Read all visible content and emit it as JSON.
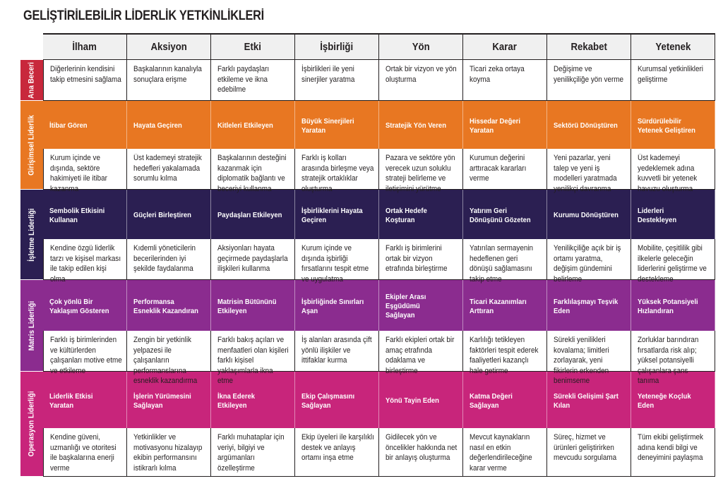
{
  "title": "GELİŞTİRİLEBİLİR LİDERLİK YETKİNLİKLERİ",
  "columns": [
    "İlham",
    "Aksiyon",
    "Etki",
    "İşbirliği",
    "Yön",
    "Karar",
    "Rekabet",
    "Yetenek"
  ],
  "colors": {
    "ana": "#c8283c",
    "girisimsel": "#e87722",
    "isletme": "#2b1f52",
    "matris": "#8b2c8f",
    "operasyon": "#c8257b"
  },
  "rows": [
    {
      "label": "Ana Beceri",
      "color_key": "ana",
      "heads": null,
      "texts": [
        "Diğerlerinin kendisini takip etmesini sağlama",
        "Başkalarının kanalıyla sonuçlara erişme",
        "Farklı paydaşları etkileme ve ikna edebilme",
        "İşbirlikleri ile yeni sinerjiler yaratma",
        "Ortak bir vizyon ve yön oluşturma",
        "Ticari zeka ortaya koyma",
        "Değişime ve yenilikçiliğe yön verme",
        "Kurumsal yetkinlikleri geliştirme"
      ]
    },
    {
      "label": "Girişimsel Liderlik",
      "color_key": "girisimsel",
      "heads": [
        "İtibar Gören",
        "Hayata Geçiren",
        "Kitleleri Etkileyen",
        "Büyük Sinerjileri Yaratan",
        "Stratejik Yön Veren",
        "Hissedar Değeri Yaratan",
        "Sektörü Dönüştüren",
        "Sürdürülebilir Yetenek Geliştiren"
      ],
      "texts": [
        "Kurum içinde ve dışında, sektöre hakimiyeti ile itibar kazanma",
        "Üst kademeyi stratejik hedefleri yakalamada sorumlu kılma",
        "Başkalarının desteğini kazanmak için diplomatik bağlantı ve beceriyi kullanma",
        "Farklı iş kolları arasında birleşme veya stratejik ortaklıklar oluşturma",
        "Pazara ve sektöre yön verecek uzun soluklu strateji belirleme ve iletişimini yürütme",
        "Kurumun değerini arttıracak kararları verme",
        "Yeni pazarlar, yeni talep ve yeni iş modelleri yaratmada yenilikçi davranma",
        "Üst kademeyi yedeklemek adına kuvvetli bir yetenek havuzu oluşturma"
      ]
    },
    {
      "label": "İşletme Liderliği",
      "color_key": "isletme",
      "heads": [
        "Sembolik Etkisini Kullanan",
        "Güçleri Birleştiren",
        "Paydaşları Etkileyen",
        "İşbirliklerini Hayata Geçiren",
        "Ortak Hedefe Koşturan",
        "Yatırım Geri Dönüşünü Gözeten",
        "Kurumu Dönüştüren",
        "Liderleri Destekleyen"
      ],
      "texts": [
        "Kendine özgü liderlik tarzı ve kişisel markası ile takip edilen kişi olma",
        "Kıdemli yöneticilerin becerilerinden iyi şekilde faydalanma",
        "Aksiyonları hayata geçirmede paydaşlarla ilişkileri kullanma",
        "Kurum içinde ve dışında işbirliği fırsatlarını tespit etme ve uygulatma",
        "Farklı iş birimlerini ortak bir vizyon etrafında birleştirme",
        "Yatırılan sermayenin hedeflenen geri dönüşü sağlamasını takip etme",
        "Yenilikçiliğe açık bir iş ortamı yaratma, değişim gündemini belirleme",
        "Mobilite, çeşitlilik gibi ilkelerle geleceğin liderlerini geliştirme ve destekleme"
      ]
    },
    {
      "label": "Matris Liderliği",
      "color_key": "matris",
      "heads": [
        "Çok yönlü Bir Yaklaşım Gösteren",
        "Performansa Esneklik Kazandıran",
        "Matrisin Bütününü Etkileyen",
        "İşbirliğinde Sınırları Aşan",
        "Ekipler Arası Eşgüdümü Sağlayan",
        "Ticari Kazanımları Arttıran",
        "Farklılaşmayı Teşvik Eden",
        "Yüksek Potansiyeli Hızlandıran"
      ],
      "texts": [
        "Farklı iş birimlerinden ve kültürlerden çalışanları motive etme ve etkileme",
        "Zengin bir yetkinlik yelpazesi ile çalışanların performanslarına esneklik kazandırma",
        "Farklı bakış açıları ve menfaatleri olan kişileri farklı kişisel yaklaşımlarla ikna etme",
        "İş alanları arasında çift yönlü ilişkiler ve ittifaklar kurma",
        "Farklı ekipleri ortak bir amaç etrafında odaklama ve birleştirme",
        "Karlılığı tetikleyen faktörleri tespit ederek faaliyetleri kazançlı hale getirme",
        "Sürekli yenilikleri kovalama; limitleri zorlayarak, yeni fikirlerin erkenden benimseme",
        "Zorluklar barındıran fırsatlarda risk alıp; yüksel potansiyelli çalışanlara şans tanıma"
      ]
    },
    {
      "label": "Operasyon Liderliği",
      "color_key": "operasyon",
      "heads": [
        "Liderlik Etkisi Yaratan",
        "İşlerin Yürümesini Sağlayan",
        "İkna Ederek Etkileyen",
        "Ekip Çalışmasını Sağlayan",
        "Yönü Tayin Eden",
        "Katma Değeri Sağlayan",
        "Sürekli Gelişimi Şart Kılan",
        "Yeteneğe Koçluk Eden"
      ],
      "texts": [
        "Kendine güveni, uzmanlığı ve otoritesi ile başkalarına enerji verme",
        "Yetkinlikler ve motivasyonu hizalayıp ekibin performansını istikrarlı kılma",
        "Farklı muhataplar için veriyi, bilgiyi ve argümanları özelleştirme",
        "Ekip üyeleri ile karşılıklı destek ve anlayış ortamı inşa etme",
        "Gidilecek yön ve öncelikler hakkında net bir anlayış oluşturma",
        "Mevcut kaynakların nasıl en etkin değerlendirileceğine karar verme",
        "Süreç, hizmet ve ürünleri geliştirirken mevcudu sorgulama",
        "Tüm ekibi geliştirmek adına kendi bilgi ve deneyimini paylaşma"
      ]
    }
  ]
}
